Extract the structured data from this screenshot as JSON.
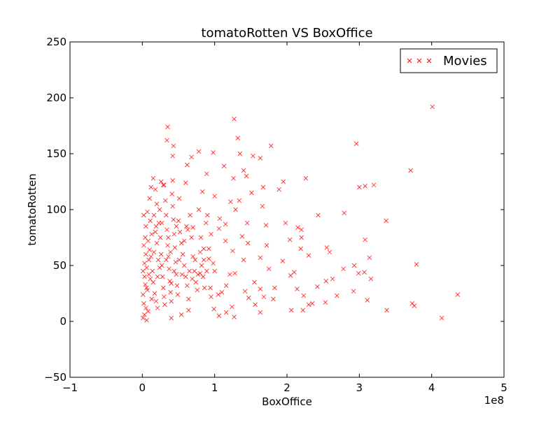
{
  "chart_data": {
    "type": "scatter",
    "title": "tomatoRotten VS BoxOffice",
    "xlabel": "BoxOffice",
    "ylabel": "tomatoRotten",
    "x_offset_label": "1e8",
    "xlim": [
      -1,
      5
    ],
    "ylim": [
      -50,
      250
    ],
    "x_scale_factor": 100000000,
    "xticks": [
      -1,
      0,
      1,
      2,
      3,
      4,
      5
    ],
    "xtick_labels": [
      "−1",
      "0",
      "1",
      "2",
      "3",
      "4",
      "5"
    ],
    "yticks": [
      -50,
      0,
      50,
      100,
      150,
      200,
      250
    ],
    "ytick_labels": [
      "−50",
      "0",
      "50",
      "100",
      "150",
      "200",
      "250"
    ],
    "grid": false,
    "legend_position": "top-right",
    "marker": "x",
    "series": [
      {
        "name": "Movies",
        "color": "#ff0000",
        "points": [
          [
            4.01,
            192
          ],
          [
            1.27,
            181
          ],
          [
            0.35,
            174
          ],
          [
            1.32,
            164
          ],
          [
            0.34,
            162
          ],
          [
            2.96,
            159
          ],
          [
            1.78,
            157
          ],
          [
            0.43,
            157
          ],
          [
            0.78,
            152
          ],
          [
            0.98,
            151
          ],
          [
            1.35,
            150
          ],
          [
            1.53,
            148
          ],
          [
            1.63,
            146
          ],
          [
            0.68,
            147
          ],
          [
            0.42,
            148
          ],
          [
            1.13,
            139
          ],
          [
            3.71,
            135
          ],
          [
            0.62,
            140
          ],
          [
            0.89,
            132
          ],
          [
            1.4,
            135
          ],
          [
            1.44,
            130
          ],
          [
            1.26,
            128
          ],
          [
            2.26,
            128
          ],
          [
            0.42,
            126
          ],
          [
            0.6,
            124
          ],
          [
            0.29,
            122
          ],
          [
            3.2,
            122
          ],
          [
            3.08,
            121
          ],
          [
            3.0,
            120
          ],
          [
            1.67,
            120
          ],
          [
            1.95,
            125
          ],
          [
            1.89,
            118
          ],
          [
            0.83,
            116
          ],
          [
            1.51,
            115
          ],
          [
            1.0,
            112
          ],
          [
            0.51,
            110
          ],
          [
            1.34,
            108
          ],
          [
            1.22,
            107
          ],
          [
            1.66,
            103
          ],
          [
            1.29,
            100
          ],
          [
            2.79,
            97
          ],
          [
            2.43,
            95
          ],
          [
            0.9,
            95
          ],
          [
            1.07,
            92
          ],
          [
            3.37,
            90
          ],
          [
            1.45,
            88
          ],
          [
            1.98,
            88
          ],
          [
            1.15,
            87
          ],
          [
            1.71,
            86
          ],
          [
            2.15,
            84
          ],
          [
            1.06,
            83
          ],
          [
            2.2,
            82
          ],
          [
            0.7,
            84
          ],
          [
            0.63,
            82
          ],
          [
            1.38,
            76
          ],
          [
            2.2,
            75
          ],
          [
            3.08,
            73
          ],
          [
            2.04,
            73
          ],
          [
            1.46,
            70
          ],
          [
            1.15,
            72
          ],
          [
            1.72,
            68
          ],
          [
            2.55,
            66
          ],
          [
            2.59,
            62
          ],
          [
            2.19,
            65
          ],
          [
            0.85,
            65
          ],
          [
            1.25,
            63
          ],
          [
            2.3,
            59
          ],
          [
            3.14,
            57
          ],
          [
            1.63,
            57
          ],
          [
            1.94,
            54
          ],
          [
            0.92,
            56
          ],
          [
            1.4,
            55
          ],
          [
            3.79,
            51
          ],
          [
            2.93,
            50
          ],
          [
            0.98,
            52
          ],
          [
            1.75,
            47
          ],
          [
            2.78,
            47
          ],
          [
            2.1,
            44
          ],
          [
            1.0,
            45
          ],
          [
            1.28,
            43
          ],
          [
            3.07,
            44
          ],
          [
            2.99,
            43
          ],
          [
            1.21,
            42
          ],
          [
            0.8,
            43
          ],
          [
            2.05,
            41
          ],
          [
            3.16,
            38
          ],
          [
            2.63,
            38
          ],
          [
            2.54,
            36
          ],
          [
            1.55,
            35
          ],
          [
            0.4,
            34
          ],
          [
            1.16,
            32
          ],
          [
            2.42,
            31
          ],
          [
            1.83,
            30
          ],
          [
            1.63,
            29
          ],
          [
            2.14,
            29
          ],
          [
            0.94,
            30
          ],
          [
            1.42,
            27
          ],
          [
            2.92,
            27
          ],
          [
            1.1,
            26
          ],
          [
            1.05,
            24
          ],
          [
            4.36,
            24
          ],
          [
            2.23,
            23
          ],
          [
            2.69,
            23
          ],
          [
            0.95,
            22
          ],
          [
            1.68,
            22
          ],
          [
            1.47,
            21
          ],
          [
            1.81,
            20
          ],
          [
            3.11,
            19
          ],
          [
            2.53,
            17
          ],
          [
            2.35,
            16
          ],
          [
            2.3,
            15
          ],
          [
            1.56,
            15
          ],
          [
            3.76,
            14
          ],
          [
            3.73,
            16
          ],
          [
            1.24,
            13
          ],
          [
            3.38,
            10
          ],
          [
            2.06,
            10
          ],
          [
            2.22,
            10
          ],
          [
            0.99,
            11
          ],
          [
            0.64,
            10
          ],
          [
            1.63,
            8
          ],
          [
            1.16,
            8
          ],
          [
            1.06,
            5
          ],
          [
            1.27,
            4
          ],
          [
            0.4,
            3
          ],
          [
            4.14,
            3
          ],
          [
            0.54,
            6
          ],
          [
            0.02,
            95
          ],
          [
            0.05,
            85
          ],
          [
            0.08,
            72
          ],
          [
            0.1,
            64
          ],
          [
            0.12,
            58
          ],
          [
            0.03,
            52
          ],
          [
            0.06,
            48
          ],
          [
            0.09,
            42
          ],
          [
            0.11,
            38
          ],
          [
            0.04,
            33
          ],
          [
            0.07,
            28
          ],
          [
            0.01,
            24
          ],
          [
            0.13,
            20
          ],
          [
            0.02,
            16
          ],
          [
            0.05,
            12
          ],
          [
            0.08,
            9
          ],
          [
            0.03,
            6
          ],
          [
            0.01,
            3
          ],
          [
            0.06,
            1
          ],
          [
            0.14,
            45
          ],
          [
            0.16,
            62
          ],
          [
            0.18,
            80
          ],
          [
            0.2,
            70
          ],
          [
            0.22,
            55
          ],
          [
            0.15,
            35
          ],
          [
            0.17,
            25
          ],
          [
            0.19,
            18
          ],
          [
            0.21,
            12
          ],
          [
            0.23,
            88
          ],
          [
            0.24,
            100
          ],
          [
            0.25,
            75
          ],
          [
            0.26,
            60
          ],
          [
            0.27,
            50
          ],
          [
            0.28,
            40
          ],
          [
            0.29,
            30
          ],
          [
            0.3,
            22
          ],
          [
            0.31,
            15
          ],
          [
            0.32,
            108
          ],
          [
            0.33,
            95
          ],
          [
            0.34,
            82
          ],
          [
            0.35,
            68
          ],
          [
            0.36,
            58
          ],
          [
            0.37,
            47
          ],
          [
            0.38,
            36
          ],
          [
            0.39,
            26
          ],
          [
            0.4,
            18
          ],
          [
            0.41,
            114
          ],
          [
            0.42,
            103
          ],
          [
            0.43,
            91
          ],
          [
            0.44,
            78
          ],
          [
            0.45,
            66
          ],
          [
            0.46,
            53
          ],
          [
            0.47,
            42
          ],
          [
            0.48,
            32
          ],
          [
            0.49,
            24
          ],
          [
            0.5,
            90
          ],
          [
            0.52,
            80
          ],
          [
            0.54,
            70
          ],
          [
            0.56,
            60
          ],
          [
            0.58,
            50
          ],
          [
            0.6,
            40
          ],
          [
            0.62,
            32
          ],
          [
            0.64,
            20
          ],
          [
            0.66,
            95
          ],
          [
            0.68,
            75
          ],
          [
            0.7,
            58
          ],
          [
            0.72,
            45
          ],
          [
            0.74,
            35
          ],
          [
            0.76,
            28
          ],
          [
            0.78,
            100
          ],
          [
            0.8,
            62
          ],
          [
            0.82,
            50
          ],
          [
            0.84,
            40
          ],
          [
            0.86,
            30
          ],
          [
            0.88,
            88
          ],
          [
            0.1,
            110
          ],
          [
            0.12,
            120
          ],
          [
            0.15,
            128
          ],
          [
            0.18,
            118
          ],
          [
            0.2,
            105
          ],
          [
            0.26,
            125
          ],
          [
            0.3,
            122
          ],
          [
            0.07,
            98
          ],
          [
            0.04,
            75
          ],
          [
            0.09,
            55
          ],
          [
            0.03,
            40
          ],
          [
            0.06,
            30
          ],
          [
            0.02,
            68
          ],
          [
            0.05,
            60
          ],
          [
            0.01,
            45
          ],
          [
            0.11,
            90
          ],
          [
            0.13,
            78
          ],
          [
            0.16,
            95
          ],
          [
            0.19,
            85
          ],
          [
            0.21,
            40
          ],
          [
            0.24,
            48
          ],
          [
            0.27,
            88
          ],
          [
            0.33,
            55
          ],
          [
            0.36,
            75
          ],
          [
            0.39,
            62
          ],
          [
            0.44,
            45
          ],
          [
            0.47,
            85
          ],
          [
            0.51,
            55
          ],
          [
            0.55,
            42
          ],
          [
            0.58,
            72
          ],
          [
            0.61,
            85
          ],
          [
            0.65,
            45
          ],
          [
            0.69,
            38
          ],
          [
            0.73,
            55
          ],
          [
            0.77,
            42
          ],
          [
            0.81,
            75
          ],
          [
            0.85,
            55
          ],
          [
            0.89,
            45
          ],
          [
            0.92,
            65
          ],
          [
            0.95,
            78
          ]
        ]
      }
    ]
  }
}
